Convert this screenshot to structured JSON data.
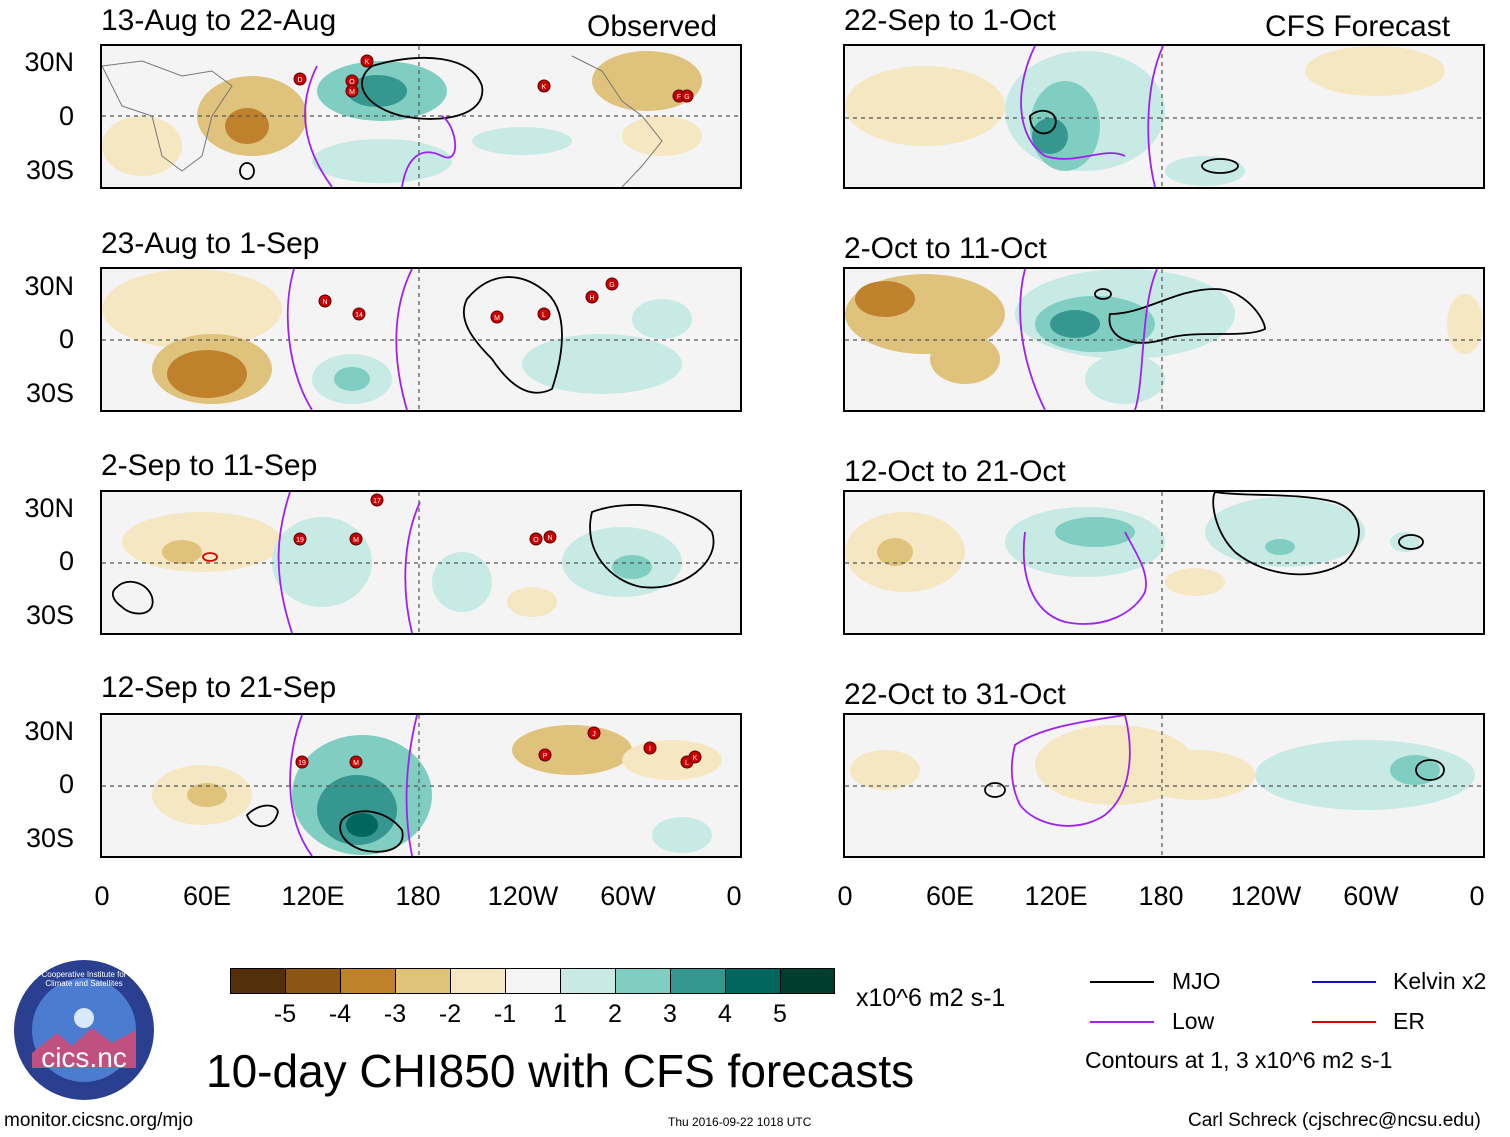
{
  "figure": {
    "title": "10-day CHI850 with CFS forecasts",
    "observed_label": "Observed",
    "forecast_label": "CFS Forecast",
    "url": "monitor.cicsnc.org/mjo",
    "timestamp": "Thu 2016-09-22 1018 UTC",
    "author": "Carl Schreck (cjschrec@ncsu.edu)",
    "logo_text": "cics.nc",
    "logo_ring_text": "Cooperative Institute for Climate and Satellites"
  },
  "panels": {
    "observed": [
      {
        "title": "13-Aug to 22-Aug"
      },
      {
        "title": "23-Aug to 1-Sep"
      },
      {
        "title": "2-Sep to 11-Sep"
      },
      {
        "title": "12-Sep to 21-Sep"
      }
    ],
    "forecast": [
      {
        "title": "22-Sep to 1-Oct"
      },
      {
        "title": "2-Oct to 11-Oct"
      },
      {
        "title": "12-Oct to 21-Oct"
      },
      {
        "title": "22-Oct to 31-Oct"
      }
    ]
  },
  "axes": {
    "lat_ticks": [
      "30N",
      "0",
      "30S"
    ],
    "lon_ticks": [
      "0",
      "60E",
      "120E",
      "180",
      "120W",
      "60W",
      "0"
    ]
  },
  "colorbar": {
    "labels": [
      "-5",
      "-4",
      "-3",
      "-2",
      "-1",
      "1",
      "2",
      "3",
      "4",
      "5"
    ],
    "units": "x10^6 m2 s-1",
    "colors": [
      "#54300a",
      "#8c5416",
      "#bf812c",
      "#dfc27c",
      "#f5e7c1",
      "#f5f5f5",
      "#c7eae5",
      "#80cdc1",
      "#35978f",
      "#01665e",
      "#003c30"
    ]
  },
  "legend": {
    "items": [
      {
        "label": "MJO",
        "color": "#000000"
      },
      {
        "label": "Low",
        "color": "#a020f0"
      },
      {
        "label": "Kelvin x2",
        "color": "#1010cc"
      },
      {
        "label": "ER",
        "color": "#dd0000"
      }
    ],
    "note": "Contours at 1, 3 x10^6 m2 s-1"
  },
  "storms": {
    "p1": [
      "D",
      "K",
      "O",
      "M",
      "K",
      "F",
      "G"
    ],
    "p2": [
      "N",
      "14",
      "M",
      "L",
      "H",
      "G"
    ],
    "p3": [
      "17",
      "19",
      "M",
      "O",
      "N"
    ],
    "p4": [
      "19",
      "M",
      "J",
      "P",
      "I",
      "L",
      "K"
    ]
  }
}
